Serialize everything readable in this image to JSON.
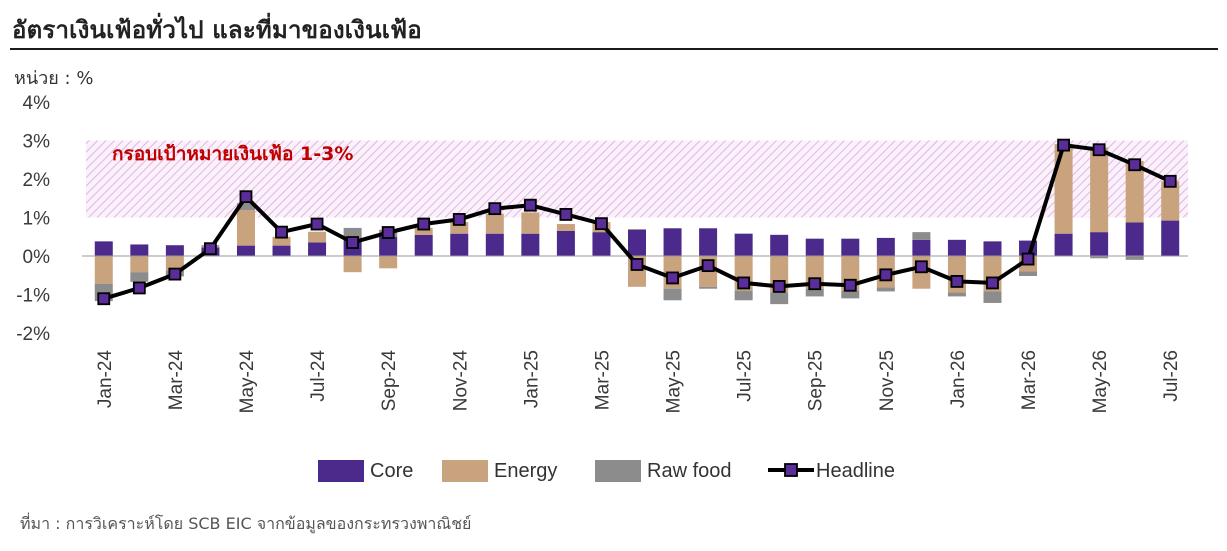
{
  "header": {
    "title": "อัตราเงินเฟ้อทั่วไป และที่มาของเงินเฟ้อ",
    "unit": "หน่วย : %"
  },
  "footer": {
    "source": "ที่มา : การวิเคราะห์โดย SCB EIC จากข้อมูลของกระทรวงพาณิชย์"
  },
  "colors": {
    "core": "#4b2a8c",
    "energy": "#c9a27e",
    "raw_food": "#8c8c8c",
    "headline_line": "#000000",
    "headline_marker": "#5b2d9a",
    "band": "#d9a7dd",
    "band_text": "#c00000"
  },
  "chart_data": {
    "type": "bar",
    "stacked": true,
    "title": "อัตราเงินเฟ้อทั่วไป และที่มาของเงินเฟ้อ",
    "ylabel": "หน่วย : %",
    "ylim": [
      -2,
      4
    ],
    "yticks": [
      "-2%",
      "-1%",
      "0%",
      "1%",
      "2%",
      "3%",
      "4%"
    ],
    "grid": false,
    "legend_position": "bottom",
    "target_band": {
      "label": "กรอบเป้าหมายเงินเฟ้อ 1-3%",
      "low": 1,
      "high": 3
    },
    "x": [
      "Jan-24",
      "Feb-24",
      "Mar-24",
      "Apr-24",
      "May-24",
      "Jun-24",
      "Jul-24",
      "Aug-24",
      "Sep-24",
      "Oct-24",
      "Nov-24",
      "Dec-24",
      "Jan-25",
      "Feb-25",
      "Mar-25",
      "Apr-25",
      "May-25",
      "Jun-25",
      "Jul-25",
      "Aug-25",
      "Sep-25",
      "Oct-25",
      "Nov-25",
      "Dec-25",
      "Jan-26",
      "Feb-26",
      "Mar-26",
      "Apr-26",
      "May-26",
      "Jun-26",
      "Jul-26"
    ],
    "x_tick_labels": [
      "Jan-24",
      "Mar-24",
      "May-24",
      "Jul-24",
      "Sep-24",
      "Nov-24",
      "Jan-25",
      "Mar-25",
      "May-25",
      "Jul-25",
      "Sep-25",
      "Nov-25",
      "Jan-26",
      "Mar-26",
      "May-26",
      "Jul-26"
    ],
    "series": [
      {
        "name": "Core",
        "kind": "bar",
        "values": [
          0.38,
          0.3,
          0.28,
          0.22,
          0.27,
          0.27,
          0.35,
          0.45,
          0.5,
          0.55,
          0.58,
          0.58,
          0.58,
          0.65,
          0.62,
          0.68,
          0.72,
          0.72,
          0.58,
          0.55,
          0.45,
          0.45,
          0.47,
          0.42,
          0.42,
          0.38,
          0.4,
          0.58,
          0.62,
          0.87,
          0.92
        ]
      },
      {
        "name": "Energy",
        "kind": "bar",
        "values": [
          -0.72,
          -0.42,
          -0.38,
          0.03,
          0.92,
          0.23,
          0.28,
          -0.42,
          -0.32,
          0.18,
          0.3,
          0.52,
          0.55,
          0.18,
          0.26,
          -0.8,
          -0.85,
          -0.8,
          -0.9,
          -0.95,
          -0.85,
          -0.9,
          -0.82,
          -0.85,
          -0.95,
          -0.92,
          -0.4,
          2.3,
          2.2,
          1.6,
          1.02
        ]
      },
      {
        "name": "Raw food",
        "kind": "bar",
        "values": [
          -0.45,
          -0.25,
          -0.15,
          0.03,
          0.18,
          0.0,
          0.0,
          0.28,
          0.18,
          0.0,
          0.0,
          0.0,
          0.0,
          0.0,
          0.0,
          0.02,
          -0.3,
          -0.05,
          -0.25,
          -0.3,
          -0.2,
          -0.2,
          -0.1,
          0.2,
          -0.1,
          -0.3,
          -0.12,
          0.02,
          -0.06,
          -0.1,
          0.0
        ]
      },
      {
        "name": "Headline",
        "kind": "line",
        "values": [
          -1.11,
          -0.83,
          -0.47,
          0.19,
          1.54,
          0.62,
          0.83,
          0.35,
          0.61,
          0.83,
          0.95,
          1.23,
          1.32,
          1.08,
          0.84,
          -0.22,
          -0.57,
          -0.25,
          -0.7,
          -0.79,
          -0.72,
          -0.76,
          -0.49,
          -0.28,
          -0.66,
          -0.7,
          -0.08,
          2.88,
          2.76,
          2.37,
          1.94
        ]
      }
    ]
  }
}
